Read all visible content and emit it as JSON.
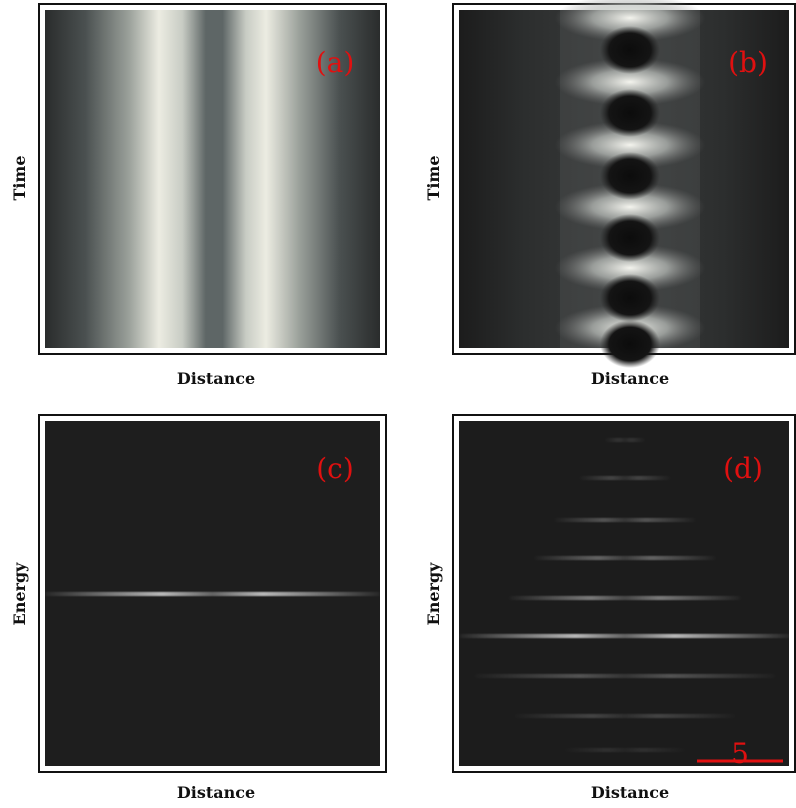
{
  "panels": [
    {
      "label": "(a)",
      "xlabel": "Distance",
      "ylabel": "Time"
    },
    {
      "label": "(b)",
      "xlabel": "Distance",
      "ylabel": "Time"
    },
    {
      "label": "(c)",
      "xlabel": "Distance",
      "ylabel": "Energy"
    },
    {
      "label": "(d)",
      "xlabel": "Distance",
      "ylabel": "Energy"
    }
  ],
  "scale_bar": "5"
}
